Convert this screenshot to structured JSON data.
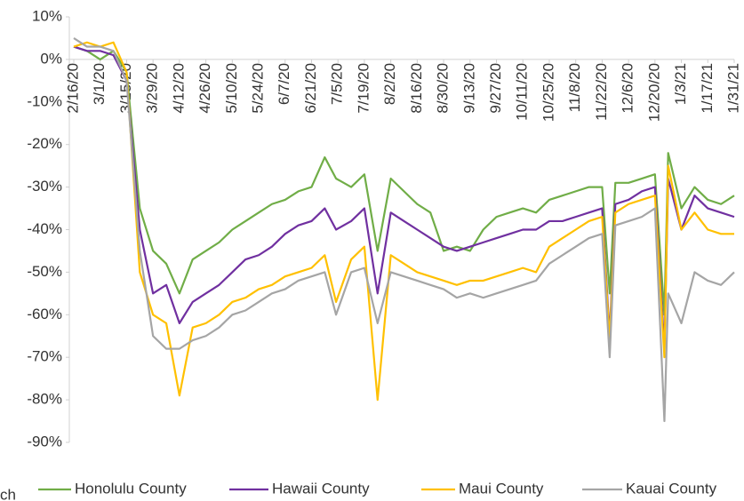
{
  "chart_data": {
    "type": "line",
    "x": [
      "2/16/20",
      "2/23/20",
      "3/1/20",
      "3/8/20",
      "3/15/20",
      "3/22/20",
      "3/29/20",
      "4/5/20",
      "4/12/20",
      "4/19/20",
      "4/26/20",
      "5/3/20",
      "5/10/20",
      "5/17/20",
      "5/24/20",
      "5/31/20",
      "6/7/20",
      "6/14/20",
      "6/21/20",
      "6/28/20",
      "7/4/20",
      "7/12/20",
      "7/19/20",
      "7/26/20",
      "8/2/20",
      "8/9/20",
      "8/16/20",
      "8/23/20",
      "8/30/20",
      "9/6/20",
      "9/13/20",
      "9/20/20",
      "9/27/20",
      "10/4/20",
      "10/11/20",
      "10/18/20",
      "10/25/20",
      "11/1/20",
      "11/8/20",
      "11/15/20",
      "11/22/20",
      "11/26/20",
      "11/29/20",
      "12/6/20",
      "12/13/20",
      "12/20/20",
      "12/25/20",
      "12/27/20",
      "1/3/21",
      "1/10/21",
      "1/17/21",
      "1/24/21",
      "1/31/21"
    ],
    "series": [
      {
        "name": "Honolulu County",
        "color": "#70ad47",
        "values": [
          3,
          2,
          0,
          2,
          -3,
          -35,
          -45,
          -48,
          -55,
          -47,
          -45,
          -43,
          -40,
          -38,
          -36,
          -34,
          -33,
          -31,
          -30,
          -23,
          -28,
          -30,
          -27,
          -45,
          -28,
          -31,
          -34,
          -36,
          -45,
          -44,
          -45,
          -40,
          -37,
          -36,
          -35,
          -36,
          -33,
          -32,
          -31,
          -30,
          -30,
          -55,
          -29,
          -29,
          -28,
          -27,
          -60,
          -22,
          -35,
          -30,
          -33,
          -34,
          -32
        ]
      },
      {
        "name": "Hawaii County",
        "color": "#7030a0",
        "values": [
          3,
          2,
          2,
          1,
          -5,
          -40,
          -55,
          -53,
          -62,
          -57,
          -55,
          -53,
          -50,
          -47,
          -46,
          -44,
          -41,
          -39,
          -38,
          -35,
          -40,
          -38,
          -35,
          -55,
          -36,
          -38,
          -40,
          -42,
          -44,
          -45,
          -44,
          -43,
          -42,
          -41,
          -40,
          -40,
          -38,
          -38,
          -37,
          -36,
          -35,
          -65,
          -34,
          -33,
          -31,
          -30,
          -68,
          -28,
          -40,
          -32,
          -35,
          -36,
          -37
        ]
      },
      {
        "name": "Maui County",
        "color": "#ffc000",
        "values": [
          3,
          4,
          3,
          4,
          -3,
          -50,
          -60,
          -62,
          -79,
          -63,
          -62,
          -60,
          -57,
          -56,
          -54,
          -53,
          -51,
          -50,
          -49,
          -46,
          -57,
          -47,
          -44,
          -80,
          -46,
          -48,
          -50,
          -51,
          -52,
          -53,
          -52,
          -52,
          -51,
          -50,
          -49,
          -50,
          -44,
          -42,
          -40,
          -38,
          -37,
          -66,
          -36,
          -34,
          -33,
          -32,
          -70,
          -25,
          -40,
          -36,
          -40,
          -41,
          -41
        ]
      },
      {
        "name": "Kauai County",
        "color": "#a5a5a5",
        "values": [
          5,
          3,
          3,
          2,
          -5,
          -45,
          -65,
          -68,
          -68,
          -66,
          -65,
          -63,
          -60,
          -59,
          -57,
          -55,
          -54,
          -52,
          -51,
          -50,
          -60,
          -50,
          -49,
          -62,
          -50,
          -51,
          -52,
          -53,
          -54,
          -56,
          -55,
          -56,
          -55,
          -54,
          -53,
          -52,
          -48,
          -46,
          -44,
          -42,
          -41,
          -70,
          -39,
          -38,
          -37,
          -35,
          -85,
          -55,
          -62,
          -50,
          -52,
          -53,
          -50
        ]
      }
    ],
    "xlim": [
      "2/16/20",
      "1/31/21"
    ],
    "xticks": [
      "2/16/20",
      "3/1/20",
      "3/15/20",
      "3/29/20",
      "4/12/20",
      "4/26/20",
      "5/10/20",
      "5/24/20",
      "6/7/20",
      "6/21/20",
      "7/5/20",
      "7/19/20",
      "8/2/20",
      "8/16/20",
      "8/30/20",
      "9/13/20",
      "9/27/20",
      "10/11/20",
      "10/25/20",
      "11/8/20",
      "11/22/20",
      "12/6/20",
      "12/20/20",
      "1/3/21",
      "1/17/21",
      "1/31/21"
    ],
    "ylim": [
      -90,
      10
    ],
    "yticks": [
      {
        "value": 10,
        "label": "10%"
      },
      {
        "value": 0,
        "label": "0%"
      },
      {
        "value": -10,
        "label": "-10%"
      },
      {
        "value": -20,
        "label": "-20%"
      },
      {
        "value": -30,
        "label": "-30%"
      },
      {
        "value": -40,
        "label": "-40%"
      },
      {
        "value": -50,
        "label": "-50%"
      },
      {
        "value": -60,
        "label": "-60%"
      },
      {
        "value": -70,
        "label": "-70%"
      },
      {
        "value": -80,
        "label": "-80%"
      },
      {
        "value": -90,
        "label": "-90%"
      }
    ],
    "note": "ch"
  }
}
